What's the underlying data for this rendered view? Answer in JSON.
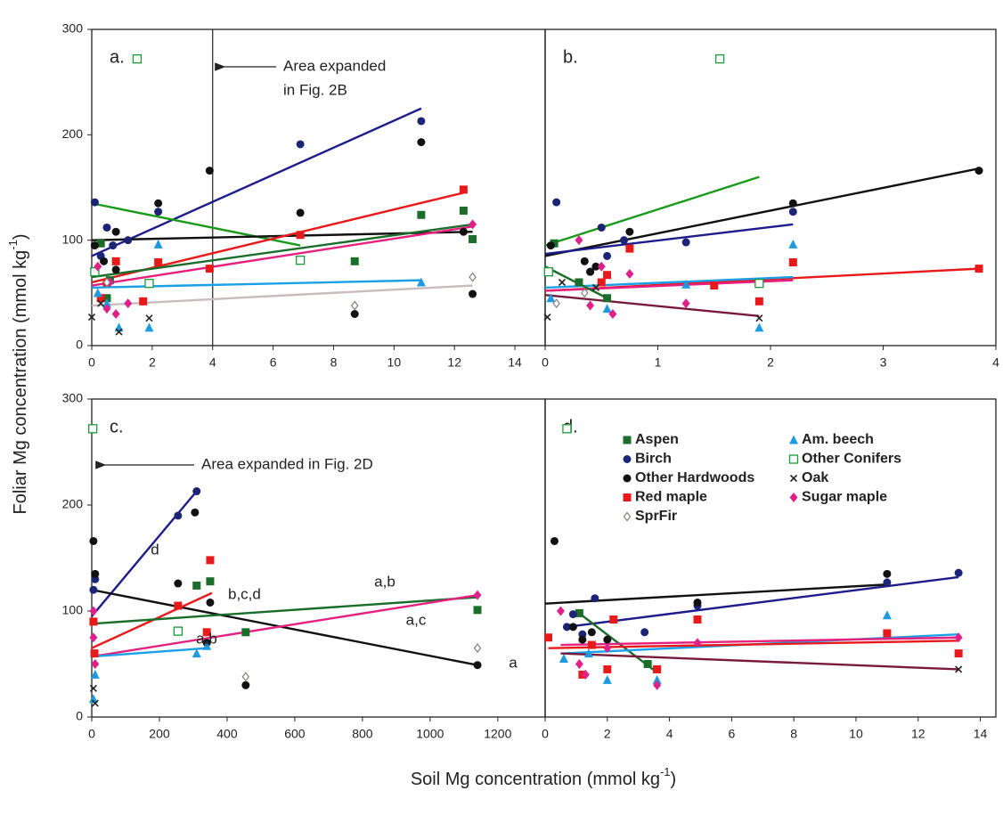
{
  "y_label": [
    "Foliar Mg concentration (mmol kg",
    "-1",
    ")"
  ],
  "x_label": [
    "Soil Mg concentration (mmol kg",
    "-1",
    ")"
  ],
  "chart_data": [
    {
      "type": "scatter",
      "panel_label": "a.",
      "xlim": [
        0,
        15
      ],
      "ylim": [
        0,
        300
      ],
      "xticks": [
        0,
        2,
        4,
        6,
        8,
        10,
        12,
        14
      ],
      "yticks": [
        0,
        100,
        200,
        300
      ],
      "vline_x": 4,
      "annotations": [
        "Area expanded",
        "in Fig. 2B"
      ],
      "series": [
        {
          "color": "#1a6e2a",
          "marker": "square",
          "x": [
            0.3,
            0.6,
            10.9,
            12.3,
            12.6,
            8.7,
            0.5
          ],
          "values": [
            97,
            62,
            124,
            128,
            101,
            80,
            45
          ]
        },
        {
          "color": "#1c2475",
          "marker": "circle",
          "x": [
            0.1,
            0.5,
            1.2,
            6.9,
            10.9,
            0.3,
            2.2,
            0.7
          ],
          "values": [
            136,
            112,
            100,
            191,
            213,
            85,
            127,
            95
          ]
        },
        {
          "color": "#111111",
          "marker": "circle",
          "x": [
            0.1,
            3.9,
            10.9,
            2.2,
            6.9,
            8.7,
            12.6,
            12.3,
            0.8,
            0.8,
            0.4
          ],
          "values": [
            95,
            166,
            193,
            135,
            126,
            30,
            49,
            108,
            108,
            72,
            80
          ]
        },
        {
          "color": "#e8191b",
          "marker": "square",
          "x": [
            12.3,
            6.9,
            2.2,
            0.8,
            1.7,
            0.5,
            0.3,
            3.9
          ],
          "values": [
            148,
            105,
            79,
            80,
            42,
            60,
            45,
            73
          ]
        },
        {
          "color": "#1e9be0",
          "marker": "triangle",
          "x": [
            2.2,
            10.9,
            0.9,
            1.9,
            0.5,
            0.2
          ],
          "values": [
            96,
            60,
            17,
            17,
            40,
            50
          ]
        },
        {
          "color": "#1a9a3a",
          "marker": "open-square",
          "x": [
            1.5,
            6.9,
            0.1,
            1.9
          ],
          "values": [
            272,
            81,
            70,
            59
          ]
        },
        {
          "color": "#222222",
          "marker": "x",
          "x": [
            0,
            0.9,
            1.9,
            0.3
          ],
          "values": [
            27,
            13,
            26,
            40
          ]
        },
        {
          "color": "#e0208a",
          "marker": "diamond",
          "x": [
            12.6,
            0.5,
            0.8,
            0.2,
            1.2,
            0.6
          ],
          "values": [
            115,
            35,
            30,
            75,
            40,
            60
          ]
        },
        {
          "color": "#8a7a7a",
          "marker": "open-diamond",
          "x": [
            8.7,
            12.6,
            0.5
          ],
          "values": [
            38,
            65,
            60
          ]
        }
      ],
      "trend_lines": [
        {
          "color": "#1c1c8c",
          "x": [
            0,
            10.9
          ],
          "values": [
            85,
            225
          ]
        },
        {
          "color": "#1a9a1a",
          "x": [
            0,
            6.9
          ],
          "values": [
            135,
            95
          ]
        },
        {
          "color": "#111111",
          "x": [
            0,
            12.6
          ],
          "values": [
            100,
            108
          ]
        },
        {
          "color": "#e8191b",
          "x": [
            0,
            12.3
          ],
          "values": [
            60,
            145
          ]
        },
        {
          "color": "#1a6e2a",
          "x": [
            0,
            12.6
          ],
          "values": [
            65,
            115
          ]
        },
        {
          "color": "#e6207f",
          "x": [
            0,
            12.6
          ],
          "values": [
            57,
            113
          ]
        },
        {
          "color": "#1aa0e6",
          "x": [
            0,
            10.9
          ],
          "values": [
            55,
            62
          ]
        },
        {
          "color": "#c8bcbc",
          "x": [
            0,
            12.6
          ],
          "values": [
            38,
            57
          ]
        }
      ]
    },
    {
      "type": "scatter",
      "panel_label": "b.",
      "xlim": [
        0,
        4
      ],
      "ylim": [
        0,
        300
      ],
      "xticks": [
        0,
        1,
        2,
        3,
        4
      ],
      "series": [
        {
          "color": "#1a6e2a",
          "marker": "square",
          "x": [
            0.08,
            0.55,
            0.3
          ],
          "values": [
            97,
            45,
            60
          ]
        },
        {
          "color": "#1c2475",
          "marker": "circle",
          "x": [
            0.1,
            0.5,
            0.4,
            1.25,
            2.2,
            0.7,
            0.55
          ],
          "values": [
            136,
            112,
            70,
            98,
            127,
            100,
            85
          ]
        },
        {
          "color": "#111111",
          "marker": "circle",
          "x": [
            0.05,
            0.75,
            2.2,
            3.85,
            0.45,
            0.4,
            0.35
          ],
          "values": [
            95,
            108,
            135,
            166,
            75,
            70,
            80
          ]
        },
        {
          "color": "#e8191b",
          "marker": "square",
          "x": [
            0.75,
            1.5,
            1.9,
            2.2,
            3.85,
            0.5,
            0.55
          ],
          "values": [
            92,
            57,
            42,
            79,
            73,
            60,
            67
          ]
        },
        {
          "color": "#1e9be0",
          "marker": "triangle",
          "x": [
            2.2,
            1.9,
            0.55,
            0.05,
            1.25
          ],
          "values": [
            96,
            17,
            35,
            45,
            58
          ]
        },
        {
          "color": "#1a9a3a",
          "marker": "open-square",
          "x": [
            1.55,
            1.9,
            0.03
          ],
          "values": [
            272,
            59,
            70
          ]
        },
        {
          "color": "#222222",
          "marker": "x",
          "x": [
            0.02,
            0.15,
            1.9,
            0.45
          ],
          "values": [
            27,
            60,
            26,
            55
          ]
        },
        {
          "color": "#e0208a",
          "marker": "diamond",
          "x": [
            0.3,
            0.5,
            0.6,
            0.75,
            1.25,
            0.4
          ],
          "values": [
            100,
            75,
            30,
            68,
            40,
            38
          ]
        },
        {
          "color": "#8a7a7a",
          "marker": "open-diamond",
          "x": [
            0.1,
            0.35
          ],
          "values": [
            40,
            50
          ]
        }
      ],
      "trend_lines": [
        {
          "color": "#1a9a1a",
          "x": [
            0,
            1.9
          ],
          "values": [
            95,
            160
          ]
        },
        {
          "color": "#111111",
          "x": [
            0,
            3.85
          ],
          "values": [
            85,
            168
          ]
        },
        {
          "color": "#1c1c8c",
          "x": [
            0,
            2.2
          ],
          "values": [
            87,
            115
          ]
        },
        {
          "color": "#e8191b",
          "x": [
            0,
            3.85
          ],
          "values": [
            52,
            73
          ]
        },
        {
          "color": "#1aa0e6",
          "x": [
            0,
            2.2
          ],
          "values": [
            55,
            65
          ]
        },
        {
          "color": "#e6207f",
          "x": [
            0,
            2.2
          ],
          "values": [
            52,
            62
          ]
        },
        {
          "color": "#7a1a3a",
          "x": [
            0,
            1.9
          ],
          "values": [
            48,
            28
          ]
        },
        {
          "color": "#1a6e2a",
          "x": [
            0,
            0.55
          ],
          "values": [
            75,
            45
          ]
        }
      ]
    },
    {
      "type": "scatter",
      "panel_label": "c.",
      "xlim": [
        0,
        1340
      ],
      "ylim": [
        0,
        300
      ],
      "xticks": [
        0,
        200,
        400,
        600,
        800,
        1000,
        1200
      ],
      "yticks": [
        0,
        100,
        200,
        300
      ],
      "annotations": [
        "Area expanded in Fig. 2D",
        "d",
        "b,c,d",
        "a,b",
        "a,c",
        "a,b",
        "a"
      ],
      "series": [
        {
          "color": "#1a6e2a",
          "marker": "square",
          "x": [
            310,
            350,
            455,
            1140
          ],
          "values": [
            124,
            128,
            80,
            101
          ]
        },
        {
          "color": "#1c2475",
          "marker": "circle",
          "x": [
            255,
            310,
            5,
            10
          ],
          "values": [
            190,
            213,
            120,
            130
          ]
        },
        {
          "color": "#111111",
          "marker": "circle",
          "x": [
            5,
            305,
            255,
            350,
            455,
            1140,
            10,
            340
          ],
          "values": [
            166,
            193,
            126,
            108,
            30,
            49,
            135,
            70
          ]
        },
        {
          "color": "#e8191b",
          "marker": "square",
          "x": [
            350,
            255,
            340,
            5,
            8
          ],
          "values": [
            148,
            105,
            80,
            90,
            60
          ]
        },
        {
          "color": "#1e9be0",
          "marker": "triangle",
          "x": [
            310,
            340,
            5,
            10
          ],
          "values": [
            60,
            67,
            17,
            40
          ]
        },
        {
          "color": "#1a9a3a",
          "marker": "open-square",
          "x": [
            3,
            255
          ],
          "values": [
            272,
            81
          ]
        },
        {
          "color": "#222222",
          "marker": "x",
          "x": [
            5,
            10
          ],
          "values": [
            27,
            13
          ]
        },
        {
          "color": "#e0208a",
          "marker": "diamond",
          "x": [
            1140,
            5,
            10,
            5
          ],
          "values": [
            115,
            100,
            50,
            75
          ]
        },
        {
          "color": "#8a7a7a",
          "marker": "open-diamond",
          "x": [
            455,
            1140
          ],
          "values": [
            38,
            65
          ]
        }
      ],
      "trend_lines": [
        {
          "color": "#1c1c8c",
          "x": [
            0,
            310
          ],
          "values": [
            95,
            213
          ]
        },
        {
          "color": "#111111",
          "x": [
            0,
            1140
          ],
          "values": [
            120,
            49
          ]
        },
        {
          "color": "#e8191b",
          "x": [
            0,
            355
          ],
          "values": [
            65,
            117
          ]
        },
        {
          "color": "#1a6e2a",
          "x": [
            0,
            1140
          ],
          "values": [
            88,
            113
          ]
        },
        {
          "color": "#e6207f",
          "x": [
            0,
            1140
          ],
          "values": [
            57,
            115
          ]
        },
        {
          "color": "#1aa0e6",
          "x": [
            0,
            340
          ],
          "values": [
            57,
            65
          ]
        }
      ]
    },
    {
      "type": "scatter",
      "panel_label": "d.",
      "xlim": [
        0,
        14.5
      ],
      "ylim": [
        0,
        300
      ],
      "xticks": [
        0,
        2,
        4,
        6,
        8,
        10,
        12,
        14
      ],
      "series": [
        {
          "name": "Aspen",
          "color": "#1a6e2a",
          "marker": "square",
          "x": [
            1.1,
            3.6,
            3.3
          ],
          "values": [
            98,
            45,
            50
          ]
        },
        {
          "name": "Am. beech",
          "color": "#1e9be0",
          "marker": "triangle",
          "x": [
            11,
            0.6,
            2,
            3.6,
            1.4
          ],
          "values": [
            96,
            55,
            35,
            35,
            60
          ]
        },
        {
          "name": "Birch",
          "color": "#1c2475",
          "marker": "circle",
          "x": [
            0.7,
            1.6,
            13.3,
            11,
            1.2,
            4.9,
            3.2,
            0.9
          ],
          "values": [
            85,
            112,
            136,
            127,
            78,
            105,
            80,
            97
          ]
        },
        {
          "name": "Other Conifers",
          "color": "#1a9a3a",
          "marker": "open-square",
          "x": [
            0.7
          ],
          "values": [
            272
          ]
        },
        {
          "name": "Other Hardwoods",
          "color": "#111111",
          "marker": "circle",
          "x": [
            0.3,
            11,
            4.9,
            2,
            1.5,
            1.2,
            0.9
          ],
          "values": [
            166,
            135,
            108,
            73,
            80,
            73,
            85
          ]
        },
        {
          "name": "Oak",
          "color": "#222222",
          "marker": "x",
          "x": [
            13.3
          ],
          "values": [
            45
          ]
        },
        {
          "name": "Red maple",
          "color": "#e8191b",
          "marker": "square",
          "x": [
            0.1,
            2.2,
            4.9,
            11,
            13.3,
            2,
            1.2,
            1.5,
            3.6
          ],
          "values": [
            75,
            92,
            92,
            79,
            60,
            45,
            40,
            68,
            45
          ]
        },
        {
          "name": "Sugar maple",
          "color": "#e0208a",
          "marker": "diamond",
          "x": [
            0.5,
            1.3,
            3.6,
            4.9,
            13.3,
            2,
            1.1
          ],
          "values": [
            100,
            40,
            30,
            70,
            75,
            65,
            50
          ]
        },
        {
          "name": "SprFir",
          "color": "#8a7a7a",
          "marker": "open-diamond",
          "x": [],
          "values": []
        }
      ],
      "trend_lines": [
        {
          "color": "#111111",
          "x": [
            0,
            11
          ],
          "values": [
            107,
            125
          ]
        },
        {
          "color": "#1c1c8c",
          "x": [
            0.7,
            13.3
          ],
          "values": [
            85,
            132
          ]
        },
        {
          "color": "#1a6e2a",
          "x": [
            1,
            3.6
          ],
          "values": [
            100,
            42
          ]
        },
        {
          "color": "#1aa0e6",
          "x": [
            0.6,
            13.3
          ],
          "values": [
            60,
            78
          ]
        },
        {
          "color": "#e8191b",
          "x": [
            0.1,
            13.3
          ],
          "values": [
            65,
            72
          ]
        },
        {
          "color": "#e6207f",
          "x": [
            0.5,
            13.3
          ],
          "values": [
            68,
            75
          ]
        },
        {
          "color": "#7a1a3a",
          "x": [
            0.5,
            13.3
          ],
          "values": [
            60,
            45
          ]
        }
      ]
    }
  ]
}
